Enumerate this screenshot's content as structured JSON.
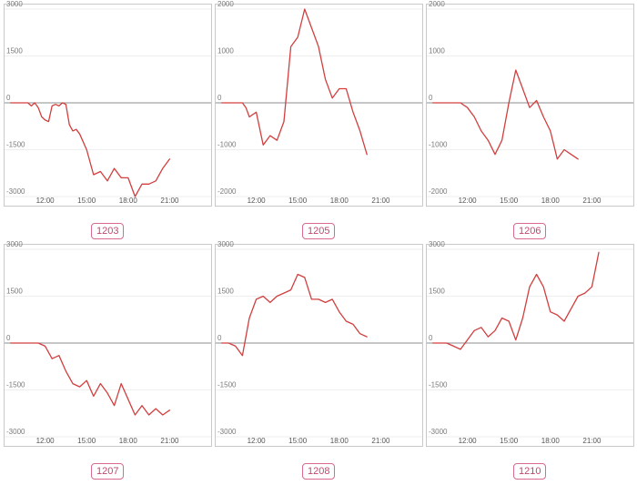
{
  "colors": {
    "line": "#d13f3f",
    "badge_border": "#d86b8f",
    "badge_text": "#c4456f"
  },
  "chart_data": [
    {
      "type": "line",
      "title": "1203",
      "x_ticks": [
        "12:00",
        "15:00",
        "18:00",
        "21:00"
      ],
      "y_ticks": [
        3000,
        1500,
        0,
        -1500,
        -3000
      ],
      "ylim": [
        -3000,
        3000
      ],
      "x": [
        9.5,
        9.75,
        10,
        10.25,
        10.5,
        10.75,
        11,
        11.25,
        11.5,
        11.75,
        12,
        12.25,
        12.5,
        12.75,
        13,
        13.25,
        13.5,
        13.75,
        14,
        14.25,
        14.5,
        15,
        15.5,
        16,
        16.5,
        17,
        17.5,
        18,
        18.5,
        19,
        19.5,
        20,
        20.5,
        21
      ],
      "values": [
        0,
        0,
        0,
        0,
        0,
        0,
        -100,
        0,
        -150,
        -450,
        -550,
        -600,
        -100,
        -50,
        -100,
        0,
        -50,
        -700,
        -900,
        -850,
        -1000,
        -1500,
        -2300,
        -2200,
        -2500,
        -2100,
        -2400,
        -2400,
        -3000,
        -2600,
        -2600,
        -2500,
        -2100,
        -1800
      ]
    },
    {
      "type": "line",
      "title": "1205",
      "x_ticks": [
        "12:00",
        "15:00",
        "18:00",
        "21:00"
      ],
      "y_ticks": [
        2000,
        1000,
        0,
        -1000,
        -2000
      ],
      "ylim": [
        -2000,
        2000
      ],
      "x": [
        9.5,
        10,
        10.5,
        11,
        11.25,
        11.5,
        12,
        12.5,
        13,
        13.5,
        14,
        14.5,
        15,
        15.5,
        16,
        16.5,
        17,
        17.5,
        18,
        18.5,
        19,
        19.5,
        20
      ],
      "values": [
        0,
        0,
        0,
        0,
        -100,
        -300,
        -200,
        -900,
        -700,
        -800,
        -400,
        1200,
        1400,
        2000,
        1600,
        1200,
        500,
        100,
        300,
        300,
        -200,
        -600,
        -1100
      ]
    },
    {
      "type": "line",
      "title": "1206",
      "x_ticks": [
        "12:00",
        "15:00",
        "18:00",
        "21:00"
      ],
      "y_ticks": [
        2000,
        1000,
        0,
        -1000,
        -2000
      ],
      "ylim": [
        -2000,
        2000
      ],
      "x": [
        9.5,
        10,
        10.5,
        11,
        11.5,
        12,
        12.5,
        13,
        13.5,
        14,
        14.5,
        15,
        15.5,
        16,
        16.5,
        17,
        17.5,
        18,
        18.5,
        19,
        19.5,
        20
      ],
      "values": [
        0,
        0,
        0,
        0,
        0,
        -100,
        -300,
        -600,
        -800,
        -1100,
        -800,
        0,
        700,
        300,
        -100,
        50,
        -300,
        -600,
        -1200,
        -1000,
        -1100,
        -1200
      ]
    },
    {
      "type": "line",
      "title": "1207",
      "x_ticks": [
        "12:00",
        "15:00",
        "18:00",
        "21:00"
      ],
      "y_ticks": [
        3000,
        1500,
        0,
        -1500,
        -3000
      ],
      "ylim": [
        -3000,
        3000
      ],
      "x": [
        9.5,
        10,
        10.5,
        11,
        11.5,
        12,
        12.25,
        12.5,
        13,
        13.5,
        14,
        14.5,
        15,
        15.5,
        16,
        16.5,
        17,
        17.5,
        18,
        18.5,
        19,
        19.5,
        20,
        20.5,
        21
      ],
      "values": [
        0,
        0,
        0,
        0,
        0,
        -100,
        -300,
        -500,
        -400,
        -900,
        -1300,
        -1400,
        -1200,
        -1700,
        -1300,
        -1600,
        -2000,
        -1300,
        -1800,
        -2300,
        -2000,
        -2300,
        -2100,
        -2300,
        -2150
      ]
    },
    {
      "type": "line",
      "title": "1208",
      "x_ticks": [
        "12:00",
        "15:00",
        "18:00",
        "21:00"
      ],
      "y_ticks": [
        3000,
        1500,
        0,
        -1500,
        -3000
      ],
      "ylim": [
        -3000,
        3000
      ],
      "x": [
        9.5,
        10,
        10.5,
        11,
        11.5,
        12,
        12.5,
        13,
        13.5,
        14,
        14.5,
        15,
        15.5,
        16,
        16.5,
        17,
        17.5,
        18,
        18.5,
        19,
        19.5,
        20
      ],
      "values": [
        0,
        0,
        -100,
        -400,
        800,
        1400,
        1500,
        1300,
        1500,
        1600,
        1700,
        2200,
        2100,
        1400,
        1400,
        1300,
        1400,
        1000,
        700,
        600,
        300,
        200
      ]
    },
    {
      "type": "line",
      "title": "1210",
      "x_ticks": [
        "12:00",
        "15:00",
        "18:00",
        "21:00"
      ],
      "y_ticks": [
        3000,
        1500,
        0,
        -1500,
        -3000
      ],
      "ylim": [
        -3000,
        3000
      ],
      "x": [
        9.5,
        10,
        10.5,
        11,
        11.5,
        12,
        12.5,
        13,
        13.5,
        14,
        14.5,
        15,
        15.5,
        16,
        16.5,
        17,
        17.5,
        18,
        18.5,
        19,
        19.5,
        20,
        20.5,
        21,
        21.5
      ],
      "values": [
        0,
        0,
        0,
        -100,
        -200,
        100,
        400,
        500,
        200,
        400,
        800,
        700,
        100,
        800,
        1800,
        2200,
        1800,
        1000,
        900,
        700,
        1100,
        1500,
        1600,
        1800,
        2900
      ]
    }
  ]
}
